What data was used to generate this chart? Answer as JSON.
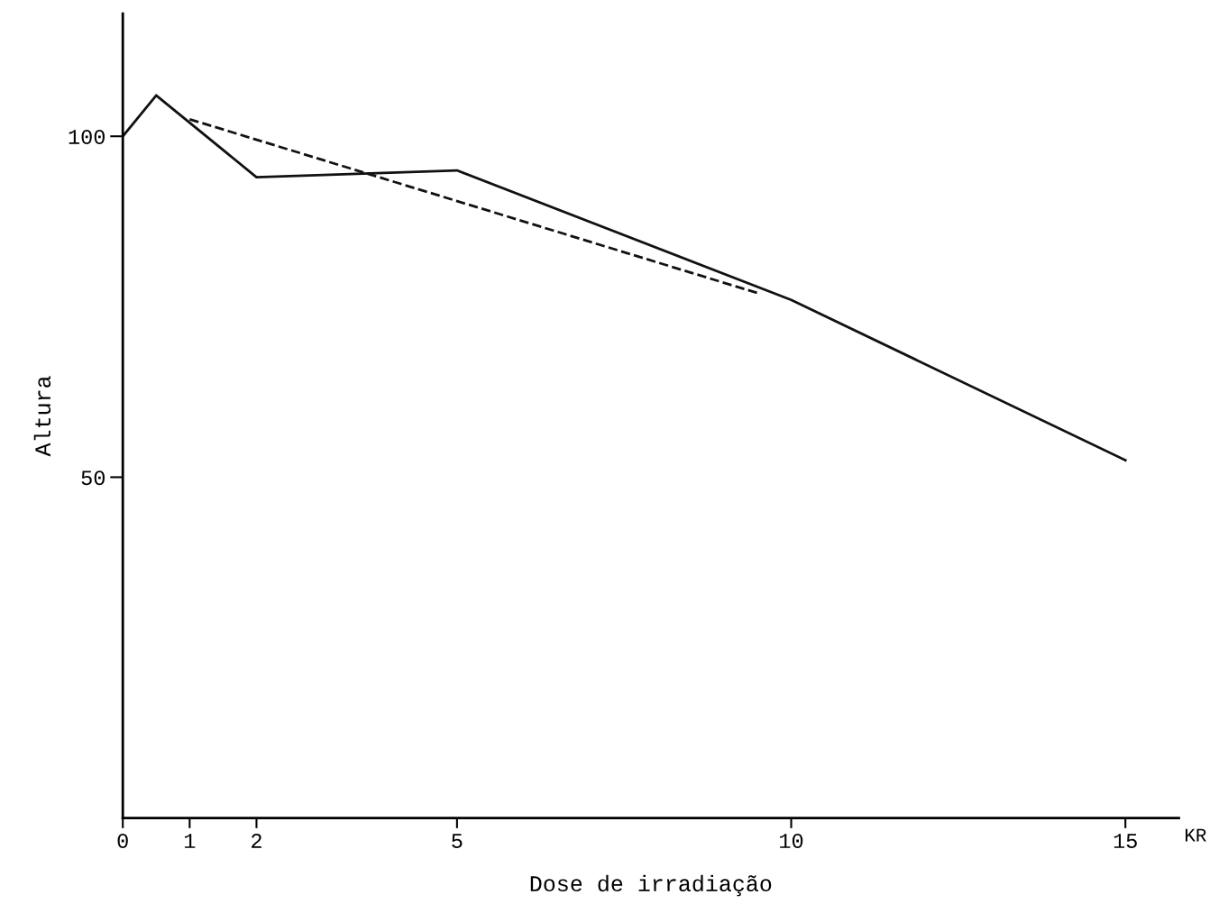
{
  "chart_data": {
    "type": "line",
    "xlabel": "Dose de irradiação",
    "ylabel": "Altura",
    "series": [
      {
        "color": "#111111",
        "x": [
          0,
          0.5,
          2,
          5,
          10,
          15
        ],
        "values": [
          100,
          106,
          94,
          95,
          76,
          52.5
        ],
        "line_style": "solid"
      },
      {
        "color": "#111111",
        "x": [
          1,
          9.5
        ],
        "values": [
          102.5,
          77
        ],
        "line_style": "dashed"
      }
    ],
    "xlim": [
      0,
      15.8
    ],
    "xticks": [
      0,
      1,
      2,
      5,
      10,
      15
    ],
    "ylim": [
      0,
      118
    ],
    "yticks": [
      50,
      100
    ],
    "grid": false,
    "legend": false,
    "marker": "none",
    "annotations": [
      "KR"
    ]
  }
}
